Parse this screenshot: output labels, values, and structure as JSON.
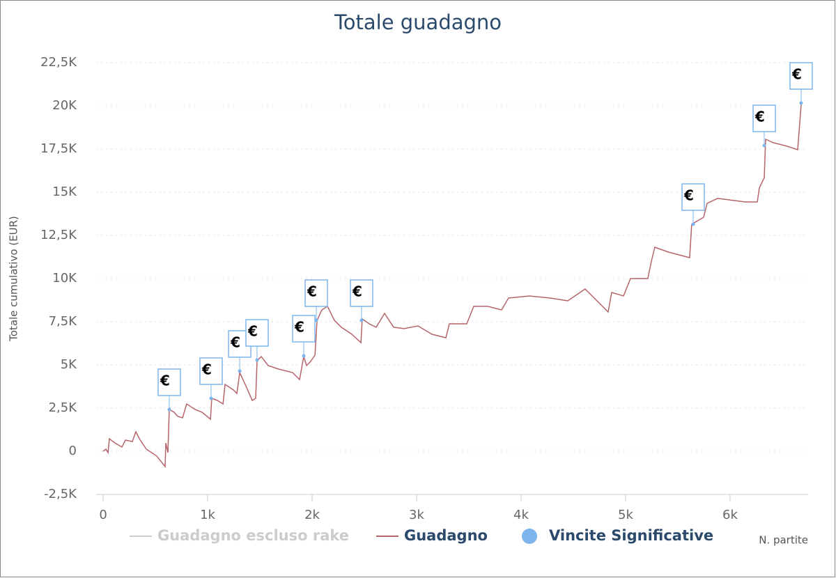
{
  "chart_data": {
    "type": "line",
    "title": "Totale guadagno",
    "y_axis_label": "Totale cumulativo (EUR)",
    "x_axis_label": "N. partite",
    "xlim": [
      -67,
      6747
    ],
    "ylim": [
      -2500,
      22500
    ],
    "xticks": [
      0,
      {
        "value": 1000,
        "label": "1k"
      },
      {
        "value": 2000,
        "label": "2k"
      },
      {
        "value": 3000,
        "label": "3k"
      },
      {
        "value": 4000,
        "label": "4k"
      },
      {
        "value": 5000,
        "label": "5k"
      },
      {
        "value": 6000,
        "label": "6k"
      }
    ],
    "yticks": [
      {
        "value": -2500,
        "label": "-2,5K"
      },
      0,
      {
        "value": 2500,
        "label": "2,5K"
      },
      {
        "value": 5000,
        "label": "5K"
      },
      {
        "value": 7500,
        "label": "7,5K"
      },
      {
        "value": 10000,
        "label": "10K"
      },
      {
        "value": 12500,
        "label": "12,5K"
      },
      {
        "value": 15000,
        "label": "15K"
      },
      {
        "value": 17500,
        "label": "17,5K"
      },
      {
        "value": 20000,
        "label": "20K"
      },
      {
        "value": 22500,
        "label": "22,5K"
      }
    ],
    "grid": true,
    "legend_position": "bottom",
    "x": [
      0,
      27,
      47,
      60,
      113,
      180,
      213,
      280,
      313,
      347,
      413,
      513,
      593,
      600,
      620,
      633,
      680,
      713,
      760,
      800,
      880,
      947,
      1027,
      1040,
      1093,
      1147,
      1167,
      1247,
      1280,
      1307,
      1360,
      1427,
      1460,
      1473,
      1513,
      1580,
      1680,
      1813,
      1880,
      1920,
      1947,
      1980,
      2027,
      2047,
      2093,
      2147,
      2213,
      2280,
      2380,
      2467,
      2480,
      2547,
      2613,
      2693,
      2780,
      2880,
      3013,
      3147,
      3280,
      3313,
      3480,
      3547,
      3680,
      3813,
      3880,
      4080,
      4280,
      4447,
      4613,
      4747,
      4833,
      4867,
      4980,
      5047,
      5213,
      5247,
      5280,
      5413,
      5613,
      5633,
      5747,
      5780,
      5880,
      6147,
      6260,
      6280,
      6327,
      6340,
      6413,
      6547,
      6647,
      6680
    ],
    "series": [
      {
        "name": "Guadagno",
        "color": "#b5646a",
        "values": [
          0,
          120,
          -80,
          725,
          480,
          240,
          645,
          565,
          1130,
          725,
          120,
          -280,
          -890,
          480,
          -80,
          2420,
          2260,
          2020,
          1935,
          2740,
          2420,
          2260,
          1855,
          3065,
          2940,
          2740,
          3870,
          3550,
          3345,
          4555,
          3870,
          2940,
          3065,
          5240,
          5485,
          4960,
          4760,
          4555,
          4155,
          5485,
          4960,
          5160,
          5565,
          7580,
          8185,
          8390,
          7580,
          7180,
          6775,
          6290,
          7660,
          7380,
          7180,
          7985,
          7180,
          7100,
          7260,
          6775,
          6570,
          7380,
          7380,
          8390,
          8390,
          8185,
          8870,
          8990,
          8870,
          8710,
          9395,
          8590,
          8065,
          9195,
          8990,
          10000,
          10000,
          11010,
          11815,
          11530,
          11210,
          13145,
          13550,
          14355,
          14640,
          14435,
          14435,
          15245,
          15850,
          18065,
          17865,
          17660,
          17460,
          20080
        ]
      },
      {
        "name": "Vincite Significative",
        "color": "#7cb5ec",
        "flag_label": "€",
        "x": [
          633,
          1033,
          1307,
          1473,
          1920,
          2040,
          2473,
          5647,
          6327,
          6680
        ],
        "values": [
          2420,
          3065,
          4640,
          5280,
          5525,
          7580,
          7580,
          13145,
          17700,
          20160
        ]
      },
      {
        "name": "Guadagno escluso rake",
        "color": "#cccccc",
        "visible": false
      }
    ]
  }
}
